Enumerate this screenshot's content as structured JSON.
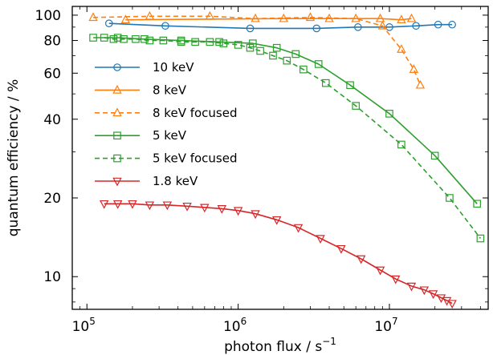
{
  "chart_data": {
    "type": "line",
    "title": "",
    "xlabel": "photon flux / s",
    "xlabel_sup": "−1",
    "ylabel": "quantum efficiency / %",
    "x_scale": "log",
    "y_scale": "log",
    "xlim": [
      80000,
      45000000
    ],
    "ylim": [
      7.5,
      108
    ],
    "x_ticks": [
      {
        "value": 100000,
        "base": "10",
        "exp": "5"
      },
      {
        "value": 1000000,
        "base": "10",
        "exp": "6"
      },
      {
        "value": 10000000,
        "base": "10",
        "exp": "7"
      }
    ],
    "y_ticks": [
      {
        "value": 10,
        "label": "10"
      },
      {
        "value": 20,
        "label": "20"
      },
      {
        "value": 40,
        "label": "40"
      },
      {
        "value": 60,
        "label": "60"
      },
      {
        "value": 80,
        "label": "80"
      },
      {
        "value": 100,
        "label": "100"
      }
    ],
    "grid": false,
    "legend_position": "left",
    "series": [
      {
        "name": "10 keV",
        "color": "#1f77b4",
        "marker": "circle",
        "linestyle": "solid",
        "x": [
          140000,
          330000,
          1200000,
          3300000,
          6200000,
          10000000,
          15000000,
          21000000,
          26000000
        ],
        "y": [
          93,
          91,
          89,
          89,
          90,
          90,
          91,
          92,
          92
        ]
      },
      {
        "name": "8 keV",
        "color": "#ff7f0e",
        "marker": "triangle-up",
        "linestyle": "solid",
        "x": [
          180000,
          2000000,
          4000000,
          8700000,
          12000000,
          14000000
        ],
        "y": [
          96,
          97,
          97,
          97,
          96,
          97
        ]
      },
      {
        "name": "8 keV focused",
        "color": "#ff7f0e",
        "marker": "triangle-up",
        "linestyle": "dashed",
        "x": [
          110000,
          260000,
          650000,
          1300000,
          3000000,
          6000000,
          9000000,
          12000000,
          14500000,
          16000000
        ],
        "y": [
          98,
          99,
          99,
          97,
          98,
          97,
          91,
          74,
          62,
          54
        ]
      },
      {
        "name": "5 keV",
        "color": "#2ca02c",
        "marker": "square",
        "linestyle": "solid",
        "x": [
          110000,
          160000,
          240000,
          420000,
          750000,
          1250000,
          1800000,
          2400000,
          3400000,
          5500000,
          10000000,
          20000000,
          38000000
        ],
        "y": [
          82,
          82,
          81,
          80,
          79,
          78,
          75,
          71,
          65,
          54,
          42,
          29,
          19
        ]
      },
      {
        "name": "5 keV focused",
        "color": "#2ca02c",
        "marker": "square",
        "linestyle": "dashed",
        "x": [
          130000,
          150000,
          175000,
          210000,
          260000,
          320000,
          420000,
          520000,
          650000,
          800000,
          1000000,
          1200000,
          1400000,
          1700000,
          2100000,
          2700000,
          3800000,
          6000000,
          12000000,
          25000000,
          40000000
        ],
        "y": [
          82,
          81,
          81,
          81,
          80,
          80,
          79,
          79,
          79,
          78,
          77,
          75,
          73,
          70,
          67,
          62,
          55,
          45,
          32,
          20,
          14
        ]
      },
      {
        "name": "1.8 keV",
        "color": "#d62728",
        "marker": "triangle-down",
        "linestyle": "solid",
        "x": [
          130000,
          160000,
          200000,
          260000,
          340000,
          460000,
          600000,
          780000,
          1000000,
          1300000,
          1800000,
          2500000,
          3500000,
          4800000,
          6500000,
          8700000,
          11000000,
          14000000,
          17000000,
          19500000,
          22000000,
          24000000,
          26000000
        ],
        "y": [
          19,
          19,
          19,
          18.8,
          18.8,
          18.6,
          18.4,
          18.2,
          17.9,
          17.4,
          16.5,
          15.4,
          14,
          12.8,
          11.7,
          10.6,
          9.8,
          9.2,
          8.9,
          8.6,
          8.3,
          8.1,
          7.9
        ]
      }
    ]
  }
}
